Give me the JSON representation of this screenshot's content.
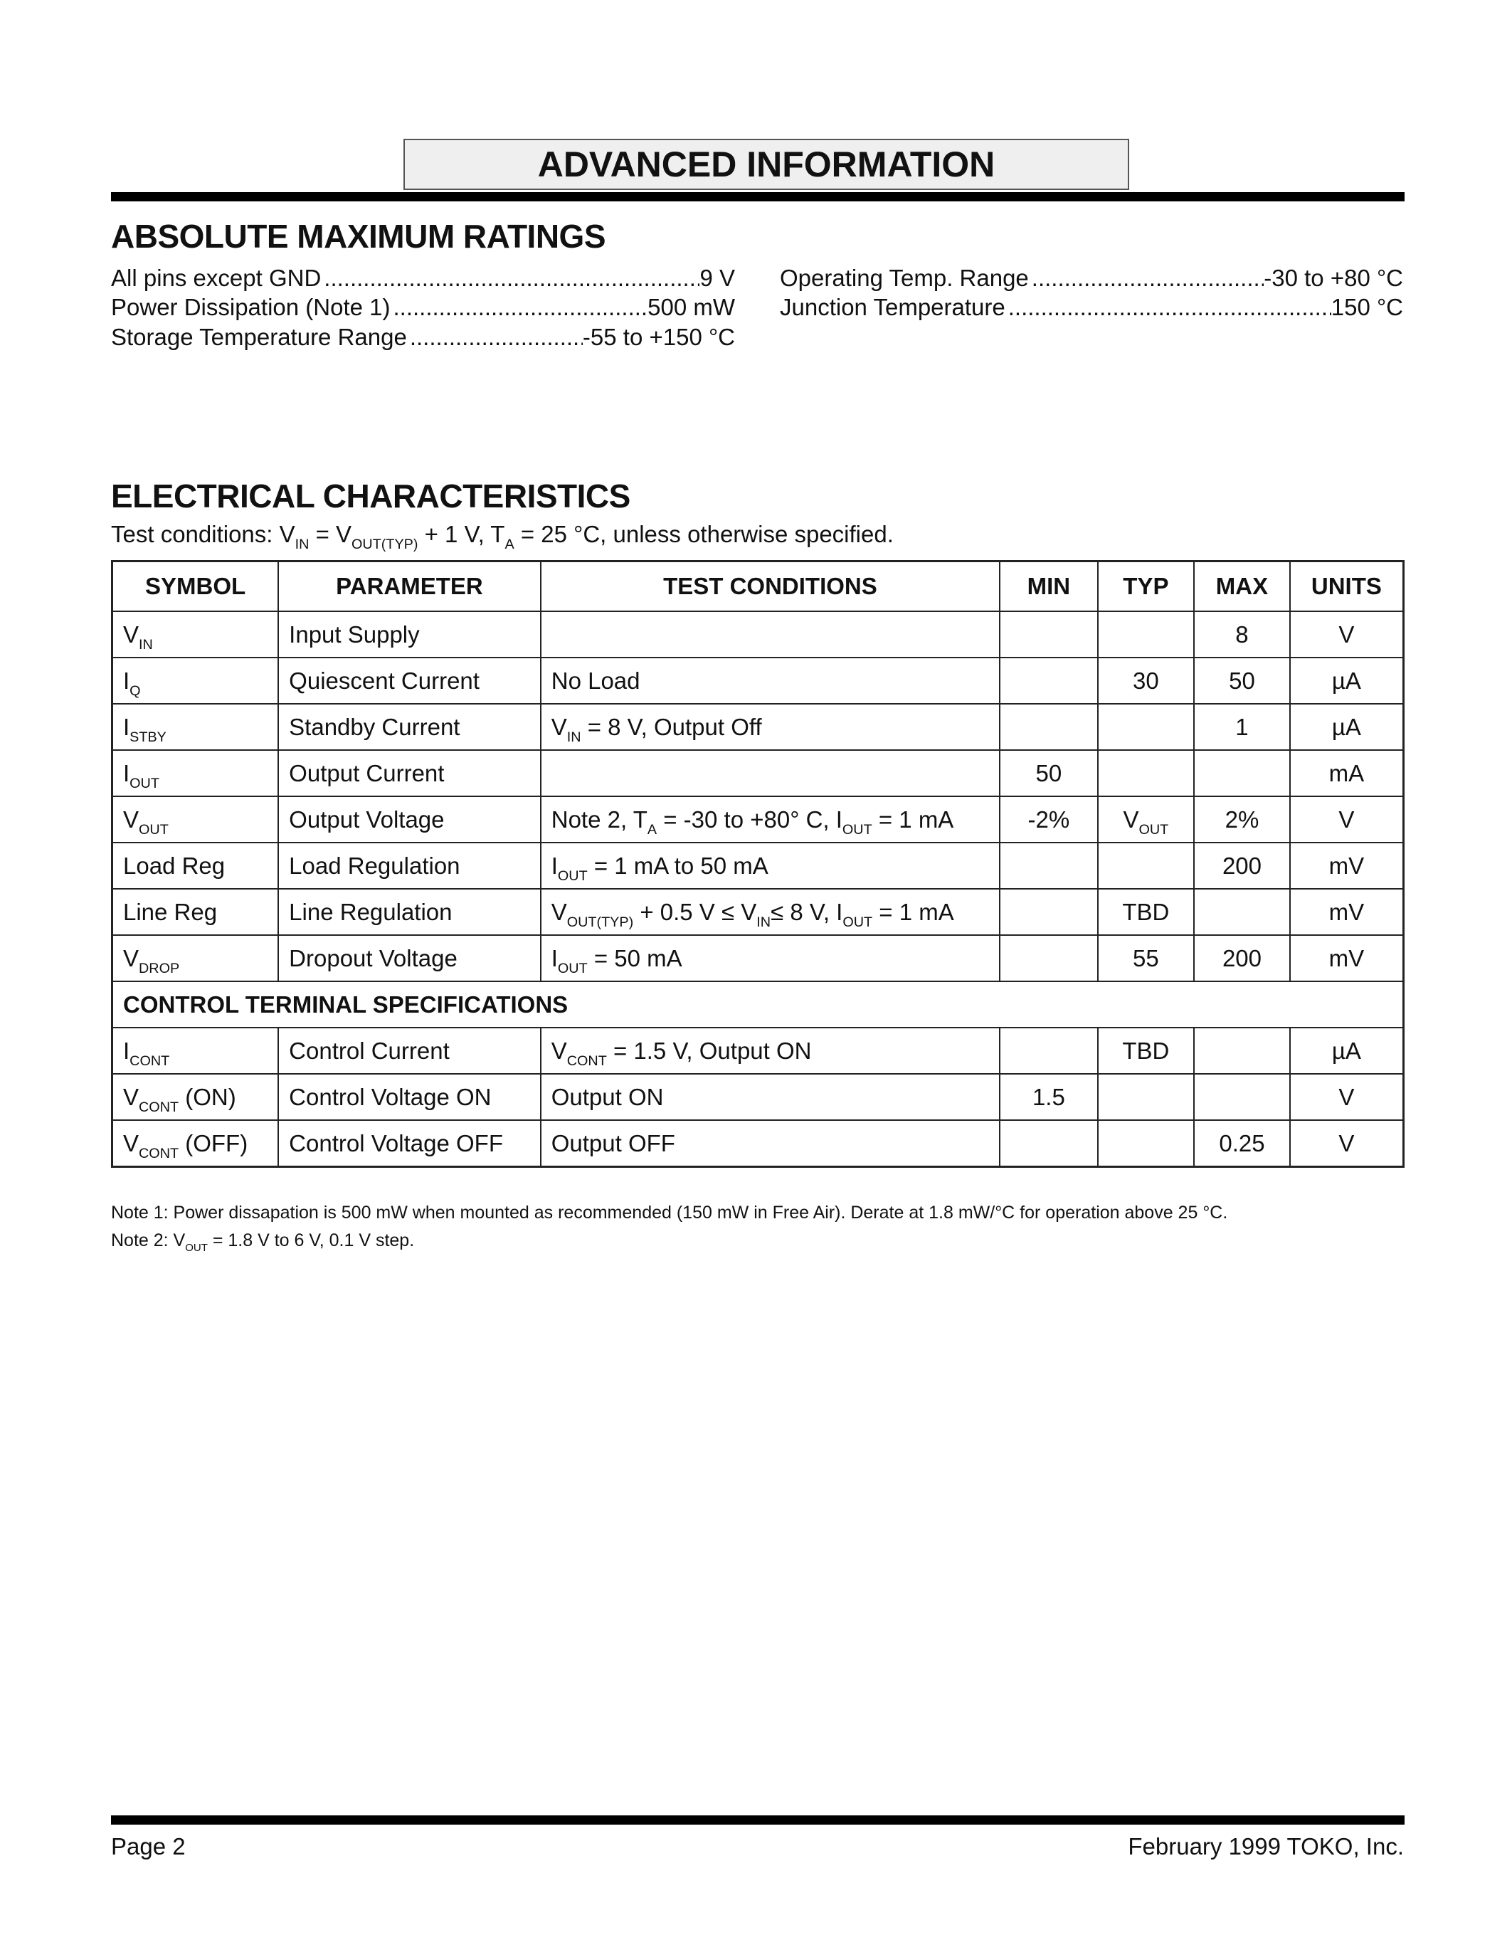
{
  "banner": "ADVANCED INFORMATION",
  "abs_max": {
    "title": "ABSOLUTE MAXIMUM RATINGS",
    "left": [
      {
        "label": "All pins except GND",
        "value": "9 V"
      },
      {
        "label": "Power Dissipation (Note 1)",
        "value": "500 mW"
      },
      {
        "label": "Storage Temperature Range",
        "value": "-55 to +150 °C"
      }
    ],
    "right": [
      {
        "label": "Operating Temp. Range",
        "value": "-30 to +80 °C"
      },
      {
        "label": "Junction Temperature",
        "value": "150 °C"
      }
    ]
  },
  "electrical": {
    "title": "ELECTRICAL CHARACTERISTICS",
    "test_conditions": [
      {
        "t": "Test conditions: V"
      },
      {
        "sub": "IN"
      },
      {
        "t": " = V"
      },
      {
        "sub": "OUT(TYP)"
      },
      {
        "t": " + 1 V, T"
      },
      {
        "sub": "A"
      },
      {
        "t": " = 25 °C, unless otherwise specified."
      }
    ],
    "headers": [
      "SYMBOL",
      "PARAMETER",
      "TEST CONDITIONS",
      "MIN",
      "TYP",
      "MAX",
      "UNITS"
    ],
    "rows": [
      {
        "symbol": [
          {
            "t": "V"
          },
          {
            "sub": "IN"
          }
        ],
        "parameter": "Input Supply",
        "conditions": "",
        "min": "",
        "typ": "",
        "max": "8",
        "units": "V"
      },
      {
        "symbol": [
          {
            "t": "I"
          },
          {
            "sub": "Q"
          }
        ],
        "parameter": "Quiescent Current",
        "conditions": "No Load",
        "min": "",
        "typ": "30",
        "max": "50",
        "units": "µA"
      },
      {
        "symbol": [
          {
            "t": "I"
          },
          {
            "sub": "STBY"
          }
        ],
        "parameter": "Standby Current",
        "conditions": [
          {
            "t": "V"
          },
          {
            "sub": "IN"
          },
          {
            "t": " = 8 V, Output Off"
          }
        ],
        "min": "",
        "typ": "",
        "max": "1",
        "units": "µA"
      },
      {
        "symbol": [
          {
            "t": "I"
          },
          {
            "sub": "OUT"
          }
        ],
        "parameter": "Output Current",
        "conditions": "",
        "min": "50",
        "typ": "",
        "max": "",
        "units": "mA"
      },
      {
        "symbol": [
          {
            "t": "V"
          },
          {
            "sub": "OUT"
          }
        ],
        "parameter": "Output Voltage",
        "conditions": [
          {
            "t": "Note 2, T"
          },
          {
            "sub": "A"
          },
          {
            "t": " = -30 to +80° C, I"
          },
          {
            "sub": "OUT"
          },
          {
            "t": " = 1 mA"
          }
        ],
        "min": "-2%",
        "typ": [
          {
            "t": "V"
          },
          {
            "sub": "OUT"
          }
        ],
        "max": "2%",
        "units": "V"
      },
      {
        "symbol": "Load Reg",
        "parameter": "Load Regulation",
        "conditions": [
          {
            "t": "I"
          },
          {
            "sub": "OUT"
          },
          {
            "t": " = 1 mA to 50 mA"
          }
        ],
        "min": "",
        "typ": "",
        "max": "200",
        "units": "mV"
      },
      {
        "symbol": "Line Reg",
        "parameter": "Line Regulation",
        "conditions": [
          {
            "t": "V"
          },
          {
            "sub": "OUT(TYP)"
          },
          {
            "t": " + 0.5 V ≤ V"
          },
          {
            "sub": "IN"
          },
          {
            "t": "≤ 8 V, I"
          },
          {
            "sub": "OUT"
          },
          {
            "t": " = 1 mA"
          }
        ],
        "min": "",
        "typ": "TBD",
        "max": "",
        "units": "mV"
      },
      {
        "symbol": [
          {
            "t": "V"
          },
          {
            "sub": "DROP"
          }
        ],
        "parameter": "Dropout Voltage",
        "conditions": [
          {
            "t": "I"
          },
          {
            "sub": "OUT"
          },
          {
            "t": " = 50 mA"
          }
        ],
        "min": "",
        "typ": "55",
        "max": "200",
        "units": "mV"
      },
      {
        "section": "CONTROL TERMINAL SPECIFICATIONS"
      },
      {
        "symbol": [
          {
            "t": "I"
          },
          {
            "sub": "CONT"
          }
        ],
        "parameter": "Control Current",
        "conditions": [
          {
            "t": "V"
          },
          {
            "sub": "CONT"
          },
          {
            "t": " = 1.5 V, Output ON"
          }
        ],
        "min": "",
        "typ": "TBD",
        "max": "",
        "units": "µA"
      },
      {
        "symbol": [
          {
            "t": "V"
          },
          {
            "sub": "CONT"
          },
          {
            "t": " (ON)"
          }
        ],
        "parameter": "Control Voltage ON",
        "conditions": "Output ON",
        "min": "1.5",
        "typ": "",
        "max": "",
        "units": "V"
      },
      {
        "symbol": [
          {
            "t": "V"
          },
          {
            "sub": "CONT"
          },
          {
            "t": " (OFF)"
          }
        ],
        "parameter": "Control Voltage OFF",
        "conditions": "Output OFF",
        "min": "",
        "typ": "",
        "max": "0.25",
        "units": "V"
      }
    ]
  },
  "notes": [
    [
      {
        "t": "Note 1:  Power dissapation is 500 mW when mounted as recommended (150 mW in Free Air).  Derate at 1.8 mW/°C for operation above 25 °C."
      }
    ],
    [
      {
        "t": "Note 2:  V"
      },
      {
        "sub": "OUT"
      },
      {
        "t": " = 1.8 V to 6 V, 0.1 V step."
      }
    ]
  ],
  "footer": {
    "page": "Page 2",
    "right": "February 1999 TOKO, Inc."
  }
}
